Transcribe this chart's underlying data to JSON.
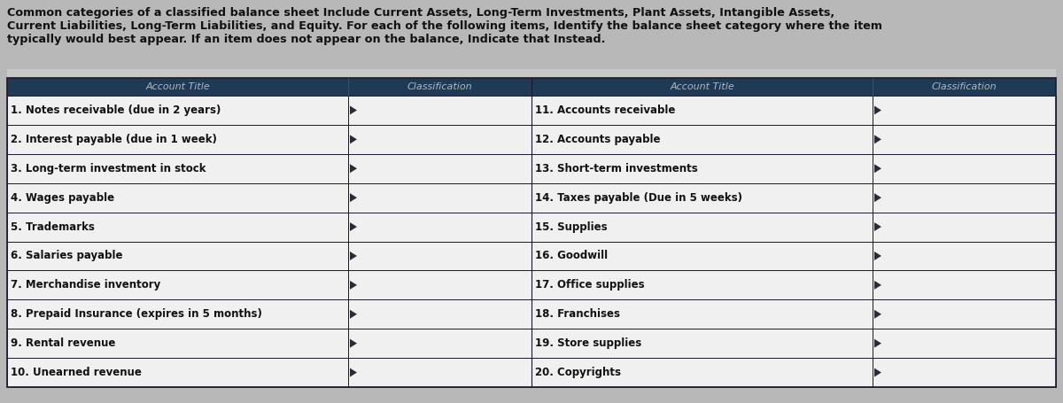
{
  "title_text_line1": "Common categories of a classified balance sheet Include Current Assets, Long-Term Investments, Plant Assets, Intangible Assets,",
  "title_text_line2": "Current Liabilities, Long-Term Liabilities, and Equity. For each of the following items, Identify the balance sheet category where the item",
  "title_text_line3": "typically would best appear. If an item does not appear on the balance, Indicate that Instead.",
  "header_bg": "#1e3a54",
  "header_text_color": "#b0b8c0",
  "row_bg_white": "#f0f0f0",
  "row_bg_dark": "#c0c0c8",
  "border_color_dark": "#1a1a2e",
  "border_color_light": "#5a5a7a",
  "text_color": "#111111",
  "title_color": "#111111",
  "page_bg": "#b8b8b8",
  "gap_bg": "#c8c8c8",
  "col1_header": "Account Title",
  "col2_header": "Classification",
  "col3_header": "Account Title",
  "col4_header": "Classification",
  "left_items": [
    "1. Notes receivable (due in 2 years)",
    "2. Interest payable (due in 1 week)",
    "3. Long-term investment in stock",
    "4. Wages payable",
    "5. Trademarks",
    "6. Salaries payable",
    "7. Merchandise inventory",
    "8. Prepaid Insurance (expires in 5 months)",
    "9. Rental revenue",
    "10. Unearned revenue"
  ],
  "right_items": [
    "11. Accounts receivable",
    "12. Accounts payable",
    "13. Short-term investments",
    "14. Taxes payable (Due in 5 weeks)",
    "15. Supplies",
    "16. Goodwill",
    "17. Office supplies",
    "18. Franchises",
    "19. Store supplies",
    "20. Copyrights"
  ]
}
